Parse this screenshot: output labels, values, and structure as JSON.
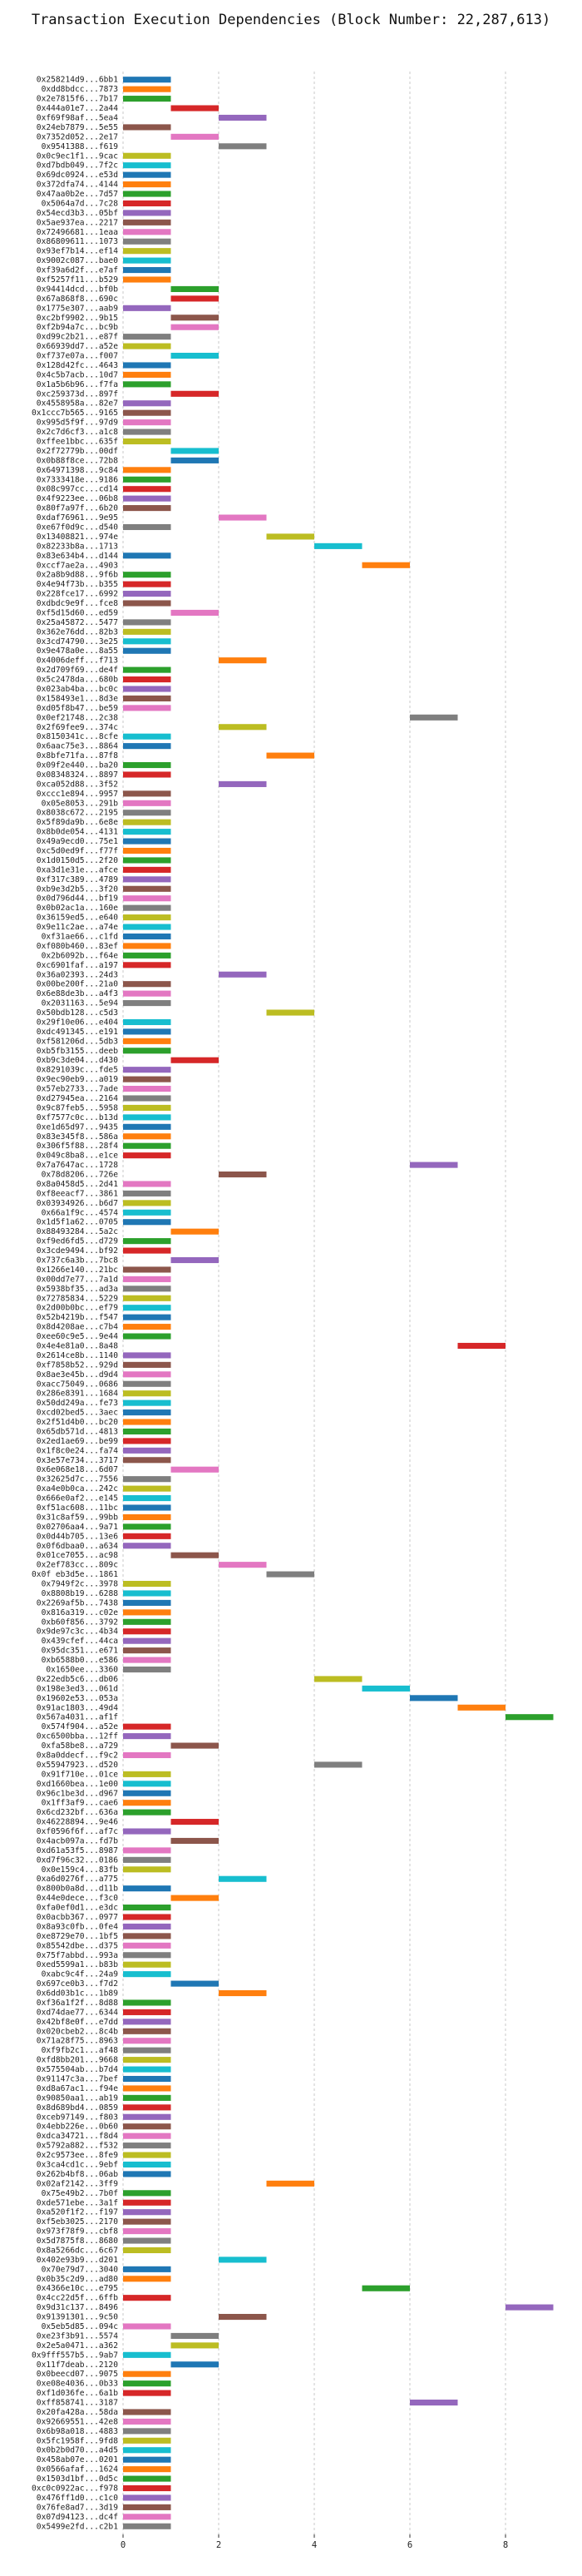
{
  "chart_data": {
    "type": "bar",
    "orientation": "horizontal",
    "title": "Transaction Execution Dependencies (Block Number: 22,287,613)",
    "xlabel": "",
    "ylabel": "",
    "xlim": [
      0,
      9.2
    ],
    "xticks": [
      0,
      2,
      4,
      6,
      8
    ],
    "grid": "vertical dashed",
    "bar_length": 1,
    "palette": [
      "#1f77b4",
      "#ff7f0e",
      "#2ca02c",
      "#d62728",
      "#9467bd",
      "#8c564b",
      "#e377c2",
      "#7f7f7f",
      "#bcbd22",
      "#17becf"
    ],
    "transactions": [
      {
        "hash": "0x258214d9...6bb1",
        "start": 0
      },
      {
        "hash": "0xdd8bdcc...7873",
        "start": 0
      },
      {
        "hash": "0x2e7815f6...7b17",
        "start": 0
      },
      {
        "hash": "0x444a01e7...2a44",
        "start": 1
      },
      {
        "hash": "0xf69f98af...5ea4",
        "start": 2
      },
      {
        "hash": "0x24eb7879...5e55",
        "start": 0
      },
      {
        "hash": "0x7352d052...2e17",
        "start": 1
      },
      {
        "hash": "0x9541388...f619",
        "start": 2
      },
      {
        "hash": "0x0c9ec1f1...9cac",
        "start": 0
      },
      {
        "hash": "0xd7bdb049...7f2c",
        "start": 0
      },
      {
        "hash": "0x69dc0924...e53d",
        "start": 0
      },
      {
        "hash": "0x372dfa74...4144",
        "start": 0
      },
      {
        "hash": "0x47aa0b2e...7d57",
        "start": 0
      },
      {
        "hash": "0x5064a7d...7c28",
        "start": 0
      },
      {
        "hash": "0x54ecd3b3...05bf",
        "start": 0
      },
      {
        "hash": "0x5ae937ea...2217",
        "start": 0
      },
      {
        "hash": "0x72496681...1eaa",
        "start": 0
      },
      {
        "hash": "0x86809611...1073",
        "start": 0
      },
      {
        "hash": "0x93ef7b14...ef14",
        "start": 0
      },
      {
        "hash": "0x9002c087...bae0",
        "start": 0
      },
      {
        "hash": "0xf39a6d2f...e7af",
        "start": 0
      },
      {
        "hash": "0xf5257f11...b529",
        "start": 0
      },
      {
        "hash": "0x94414dcd...bf0b",
        "start": 1
      },
      {
        "hash": "0x67a868f8...690c",
        "start": 1
      },
      {
        "hash": "0x1775e307...aab9",
        "start": 0
      },
      {
        "hash": "0xc2bf9902...9b15",
        "start": 1
      },
      {
        "hash": "0xf2b94a7c...bc9b",
        "start": 1
      },
      {
        "hash": "0xd99c2b21...e87f",
        "start": 0
      },
      {
        "hash": "0x66939dd7...a52e",
        "start": 0
      },
      {
        "hash": "0xf737e07a...f007",
        "start": 1
      },
      {
        "hash": "0x128d42fc...4643",
        "start": 0
      },
      {
        "hash": "0x4c5b7acb...10d7",
        "start": 0
      },
      {
        "hash": "0x1a5b6b96...f7fa",
        "start": 0
      },
      {
        "hash": "0xc259373d...897f",
        "start": 1
      },
      {
        "hash": "0x4558958a...82e7",
        "start": 0
      },
      {
        "hash": "0x1ccc7b565...9165",
        "start": 0
      },
      {
        "hash": "0x995d5f9f...97d9",
        "start": 0
      },
      {
        "hash": "0x2c7d6cf3...a1c8",
        "start": 0
      },
      {
        "hash": "0xffee1bbc...635f",
        "start": 0
      },
      {
        "hash": "0x2f72779b...00df",
        "start": 1
      },
      {
        "hash": "0x0b88f8ce...72b8",
        "start": 1
      },
      {
        "hash": "0x64971398...9c84",
        "start": 0
      },
      {
        "hash": "0x7333418e...9186",
        "start": 0
      },
      {
        "hash": "0x08c997cc...cd14",
        "start": 0
      },
      {
        "hash": "0x4f9223ee...06b8",
        "start": 0
      },
      {
        "hash": "0x80f7a97f...6b20",
        "start": 0
      },
      {
        "hash": "0xdaf76961...9e95",
        "start": 2
      },
      {
        "hash": "0xe67f0d9c...d540",
        "start": 0
      },
      {
        "hash": "0x13408821...974e",
        "start": 3
      },
      {
        "hash": "0x82233b8a...1713",
        "start": 4
      },
      {
        "hash": "0x83e634b4...d144",
        "start": 0
      },
      {
        "hash": "0xccf7ae2a...4903",
        "start": 5
      },
      {
        "hash": "0x2a8b9d88...9f6b",
        "start": 0
      },
      {
        "hash": "0x4e94f73b...b355",
        "start": 0
      },
      {
        "hash": "0x228fce17...6992",
        "start": 0
      },
      {
        "hash": "0xdbdc9e9f...fce8",
        "start": 0
      },
      {
        "hash": "0xf5d15d60...ed59",
        "start": 1
      },
      {
        "hash": "0x25a45872...5477",
        "start": 0
      },
      {
        "hash": "0x362e76dd...82b3",
        "start": 0
      },
      {
        "hash": "0x3cd74790...3e25",
        "start": 0
      },
      {
        "hash": "0x9e478a0e...8a55",
        "start": 0
      },
      {
        "hash": "0x4006deff...f713",
        "start": 2
      },
      {
        "hash": "0x2d709f69...de4f",
        "start": 0
      },
      {
        "hash": "0x5c2478da...680b",
        "start": 0
      },
      {
        "hash": "0x023ab4ba...bc0c",
        "start": 0
      },
      {
        "hash": "0x158493e1...8d3e",
        "start": 0
      },
      {
        "hash": "0xd05f8b47...be59",
        "start": 0
      },
      {
        "hash": "0x0ef21748...2c38",
        "start": 6
      },
      {
        "hash": "0x2f69fee9...374c",
        "start": 2
      },
      {
        "hash": "0x8150341c...8cfe",
        "start": 0
      },
      {
        "hash": "0x6aac75e3...8864",
        "start": 0
      },
      {
        "hash": "0x8bfe71fa...87f8",
        "start": 3
      },
      {
        "hash": "0x09f2e440...ba20",
        "start": 0
      },
      {
        "hash": "0x08348324...8897",
        "start": 0
      },
      {
        "hash": "0xca052d88...3f52",
        "start": 2
      },
      {
        "hash": "0xccc1e894...9957",
        "start": 0
      },
      {
        "hash": "0x05e8053...291b",
        "start": 0
      },
      {
        "hash": "0x8038c672...2195",
        "start": 0
      },
      {
        "hash": "0x5f89da9b...6e8e",
        "start": 0
      },
      {
        "hash": "0x8b0de054...4131",
        "start": 0
      },
      {
        "hash": "0x49a9ecd0...75e1",
        "start": 0
      },
      {
        "hash": "0xc5d0ed9f...f77f",
        "start": 0
      },
      {
        "hash": "0x1d0150d5...2f20",
        "start": 0
      },
      {
        "hash": "0xa3d1e31e...afce",
        "start": 0
      },
      {
        "hash": "0xf317c389...4789",
        "start": 0
      },
      {
        "hash": "0xb9e3d2b5...3f20",
        "start": 0
      },
      {
        "hash": "0x0d796d44...bf19",
        "start": 0
      },
      {
        "hash": "0x0b02ac1a...160e",
        "start": 0
      },
      {
        "hash": "0x36159ed5...e640",
        "start": 0
      },
      {
        "hash": "0x9e11c2ae...a74e",
        "start": 0
      },
      {
        "hash": "0xf31ae66...c1fd",
        "start": 0
      },
      {
        "hash": "0xf080b460...83ef",
        "start": 0
      },
      {
        "hash": "0x2b6092b...f64e",
        "start": 0
      },
      {
        "hash": "0xc6901faf...a197",
        "start": 0
      },
      {
        "hash": "0x36a02393...24d3",
        "start": 2
      },
      {
        "hash": "0x00be200f...21a0",
        "start": 0
      },
      {
        "hash": "0x6e88de3b...a4f3",
        "start": 0
      },
      {
        "hash": "0x2031163...5e94",
        "start": 0
      },
      {
        "hash": "0x50bdb128...c5d3",
        "start": 3
      },
      {
        "hash": "0x29f10e06...e404",
        "start": 0
      },
      {
        "hash": "0xdc491345...e191",
        "start": 0
      },
      {
        "hash": "0xf581206d...5db3",
        "start": 0
      },
      {
        "hash": "0xb5fb3155...deeb",
        "start": 0
      },
      {
        "hash": "0xb9c3de04...d430",
        "start": 1
      },
      {
        "hash": "0x8291039c...fde5",
        "start": 0
      },
      {
        "hash": "0x9ec90eb9...a019",
        "start": 0
      },
      {
        "hash": "0x57eb2733...7ade",
        "start": 0
      },
      {
        "hash": "0xd27945ea...2164",
        "start": 0
      },
      {
        "hash": "0x9c87feb5...5958",
        "start": 0
      },
      {
        "hash": "0xf7577c0c...b13d",
        "start": 0
      },
      {
        "hash": "0xe1d65d97...9435",
        "start": 0
      },
      {
        "hash": "0x83e345f8...586a",
        "start": 0
      },
      {
        "hash": "0x306f5f88...28f4",
        "start": 0
      },
      {
        "hash": "0x049c8ba8...e1ce",
        "start": 0
      },
      {
        "hash": "0x7a7647ac...1728",
        "start": 6
      },
      {
        "hash": "0x78d8206...726e",
        "start": 2
      },
      {
        "hash": "0x8a0458d5...2d41",
        "start": 0
      },
      {
        "hash": "0xf8eeacf7...3861",
        "start": 0
      },
      {
        "hash": "0x03934926...b6d7",
        "start": 0
      },
      {
        "hash": "0x66a1f9c...4574",
        "start": 0
      },
      {
        "hash": "0x1d5f1a62...0705",
        "start": 0
      },
      {
        "hash": "0x88493284...5a2c",
        "start": 1
      },
      {
        "hash": "0xf9ed6fd5...d729",
        "start": 0
      },
      {
        "hash": "0x3cde9494...bf92",
        "start": 0
      },
      {
        "hash": "0x737c6a3b...7bc8",
        "start": 1
      },
      {
        "hash": "0x1266e140...21bc",
        "start": 0
      },
      {
        "hash": "0x00dd7e77...7a1d",
        "start": 0
      },
      {
        "hash": "0x5938bf35...ad3a",
        "start": 0
      },
      {
        "hash": "0x72785834...5229",
        "start": 0
      },
      {
        "hash": "0x2d00b0bc...ef79",
        "start": 0
      },
      {
        "hash": "0x52b4219b...f547",
        "start": 0
      },
      {
        "hash": "0x8d4208ae...c7b4",
        "start": 0
      },
      {
        "hash": "0xee60c9e5...9e44",
        "start": 0
      },
      {
        "hash": "0x4e4e81a0...8a48",
        "start": 7
      },
      {
        "hash": "0x2614ce8b...1140",
        "start": 0
      },
      {
        "hash": "0xf7858b52...929d",
        "start": 0
      },
      {
        "hash": "0x8ae3e45b...d9d4",
        "start": 0
      },
      {
        "hash": "0xacc75049...0686",
        "start": 0
      },
      {
        "hash": "0x286e8391...1684",
        "start": 0
      },
      {
        "hash": "0x50dd249a...fe73",
        "start": 0
      },
      {
        "hash": "0xcd02bed5...3aec",
        "start": 0
      },
      {
        "hash": "0x2f51d4b0...bc20",
        "start": 0
      },
      {
        "hash": "0x65db571d...4813",
        "start": 0
      },
      {
        "hash": "0x2ed1ae69...be99",
        "start": 0
      },
      {
        "hash": "0x1f8c0e24...fa74",
        "start": 0
      },
      {
        "hash": "0x3e57e734...3717",
        "start": 0
      },
      {
        "hash": "0x6e068e18...6d07",
        "start": 1
      },
      {
        "hash": "0x32625d7c...7556",
        "start": 0
      },
      {
        "hash": "0xa4e0b0ca...242c",
        "start": 0
      },
      {
        "hash": "0x666e0af2...e145",
        "start": 0
      },
      {
        "hash": "0xf51ac608...11bc",
        "start": 0
      },
      {
        "hash": "0x31c8af59...99bb",
        "start": 0
      },
      {
        "hash": "0x02706aa4...9a71",
        "start": 0
      },
      {
        "hash": "0x0d44b705...13e6",
        "start": 0
      },
      {
        "hash": "0x0f6dbaa0...a634",
        "start": 0
      },
      {
        "hash": "0x01ce7055...ac98",
        "start": 1
      },
      {
        "hash": "0x2ef783cc...809c",
        "start": 2
      },
      {
        "hash": "0x0f eb3d5e...1861",
        "start": 3
      },
      {
        "hash": "0x7949f2c...3978",
        "start": 0
      },
      {
        "hash": "0x8808b19...6288",
        "start": 0
      },
      {
        "hash": "0x2269af5b...7438",
        "start": 0
      },
      {
        "hash": "0x816a319...c02e",
        "start": 0
      },
      {
        "hash": "0xb60f856...3792",
        "start": 0
      },
      {
        "hash": "0x9de97c3c...4b34",
        "start": 0
      },
      {
        "hash": "0x439cfef...44ca",
        "start": 0
      },
      {
        "hash": "0x95dc351...e671",
        "start": 0
      },
      {
        "hash": "0xb6588b0...e586",
        "start": 0
      },
      {
        "hash": "0x1650ee...3360",
        "start": 0
      },
      {
        "hash": "0x22edb5c6...db06",
        "start": 4
      },
      {
        "hash": "0x198e3ed3...061d",
        "start": 5
      },
      {
        "hash": "0x19602e53...053a",
        "start": 6
      },
      {
        "hash": "0x91ac1803...49d4",
        "start": 7
      },
      {
        "hash": "0x567a4031...af1f",
        "start": 8
      },
      {
        "hash": "0x574f904...a52e",
        "start": 0
      },
      {
        "hash": "0xc6500bba...12ff",
        "start": 0
      },
      {
        "hash": "0xfa58be8...a729",
        "start": 1
      },
      {
        "hash": "0x8a0ddecf...f9c2",
        "start": 0
      },
      {
        "hash": "0x55947923...d520",
        "start": 4
      },
      {
        "hash": "0x91f710e...01ce",
        "start": 0
      },
      {
        "hash": "0xd1660bea...1e00",
        "start": 0
      },
      {
        "hash": "0x96c1be3d...d967",
        "start": 0
      },
      {
        "hash": "0x1ff3af9...cae6",
        "start": 0
      },
      {
        "hash": "0x6cd232bf...636a",
        "start": 0
      },
      {
        "hash": "0x46228894...9e46",
        "start": 1
      },
      {
        "hash": "0xf0596f6f...af7c",
        "start": 0
      },
      {
        "hash": "0x4acb097a...fd7b",
        "start": 1
      },
      {
        "hash": "0xd61a53f5...8987",
        "start": 0
      },
      {
        "hash": "0xd7f96c32...0186",
        "start": 0
      },
      {
        "hash": "0x0e159c4...83fb",
        "start": 0
      },
      {
        "hash": "0xa6d0276f...a775",
        "start": 2
      },
      {
        "hash": "0x800b0a8d...d11b",
        "start": 0
      },
      {
        "hash": "0x44e0dece...f3c0",
        "start": 1
      },
      {
        "hash": "0xfa0ef0d1...e3dc",
        "start": 0
      },
      {
        "hash": "0x0acbb367...0977",
        "start": 0
      },
      {
        "hash": "0x8a93c0fb...0fe4",
        "start": 0
      },
      {
        "hash": "0xe8729e70...1bf5",
        "start": 0
      },
      {
        "hash": "0x85542dbe...d375",
        "start": 0
      },
      {
        "hash": "0x75f7abbd...993a",
        "start": 0
      },
      {
        "hash": "0xed5599a1...b83b",
        "start": 0
      },
      {
        "hash": "0xabc9c4f...24a9",
        "start": 0
      },
      {
        "hash": "0x697ce0b3...f7d2",
        "start": 1
      },
      {
        "hash": "0x6dd03b1c...1b89",
        "start": 2
      },
      {
        "hash": "0xf36a1f2f...8d88",
        "start": 0
      },
      {
        "hash": "0xd74dae77...6344",
        "start": 0
      },
      {
        "hash": "0x42bf8e0f...e7dd",
        "start": 0
      },
      {
        "hash": "0x020cbeb2...8c4b",
        "start": 0
      },
      {
        "hash": "0x71a28f75...8963",
        "start": 0
      },
      {
        "hash": "0xf9fb2c1...af48",
        "start": 0
      },
      {
        "hash": "0xfd8bb201...9668",
        "start": 0
      },
      {
        "hash": "0x575504ab...b7d4",
        "start": 0
      },
      {
        "hash": "0x91147c3a...7bef",
        "start": 0
      },
      {
        "hash": "0xd8a67ac1...f94e",
        "start": 0
      },
      {
        "hash": "0x90850aa1...ab19",
        "start": 0
      },
      {
        "hash": "0x8d689bd4...0859",
        "start": 0
      },
      {
        "hash": "0xceb97149...f803",
        "start": 0
      },
      {
        "hash": "0x4ebb226e...0b60",
        "start": 0
      },
      {
        "hash": "0xdca34721...f8d4",
        "start": 0
      },
      {
        "hash": "0x5792a882...f532",
        "start": 0
      },
      {
        "hash": "0x2c9573ee...8fe9",
        "start": 0
      },
      {
        "hash": "0x3ca4cd1c...9ebf",
        "start": 0
      },
      {
        "hash": "0x262b4bf8...06ab",
        "start": 0
      },
      {
        "hash": "0x02af2142...3ff9",
        "start": 3
      },
      {
        "hash": "0x75e49b2...7b0f",
        "start": 0
      },
      {
        "hash": "0xde571ebe...3a1f",
        "start": 0
      },
      {
        "hash": "0xa520f1f2...f197",
        "start": 0
      },
      {
        "hash": "0xf5eb3025...2170",
        "start": 0
      },
      {
        "hash": "0x973f78f9...cbf8",
        "start": 0
      },
      {
        "hash": "0x5d7875f8...8680",
        "start": 0
      },
      {
        "hash": "0x8a5266dc...6c67",
        "start": 0
      },
      {
        "hash": "0x402e93b9...d201",
        "start": 2
      },
      {
        "hash": "0x70e79d7...3040",
        "start": 0
      },
      {
        "hash": "0x0b35c2d9...ad80",
        "start": 0
      },
      {
        "hash": "0x4366e10c...e795",
        "start": 5
      },
      {
        "hash": "0x4cc22d5f...6ffb",
        "start": 0
      },
      {
        "hash": "0x9d31c137...8496",
        "start": 8
      },
      {
        "hash": "0x91391301...9c50",
        "start": 2
      },
      {
        "hash": "0x5eb5d85...094c",
        "start": 0
      },
      {
        "hash": "0xe23f3b91...5574",
        "start": 1
      },
      {
        "hash": "0x2e5a0471...a362",
        "start": 1
      },
      {
        "hash": "0x9fff557b5...9ab7",
        "start": 0
      },
      {
        "hash": "0x11f7deab...2120",
        "start": 1
      },
      {
        "hash": "0x0beecd07...9075",
        "start": 0
      },
      {
        "hash": "0xe08e4036...0b33",
        "start": 0
      },
      {
        "hash": "0xf1d036fe...6a1b",
        "start": 0
      },
      {
        "hash": "0xff858741...3187",
        "start": 6
      },
      {
        "hash": "0x20fa428a...58da",
        "start": 0
      },
      {
        "hash": "0x92669551...42e8",
        "start": 0
      },
      {
        "hash": "0x6b98a018...4883",
        "start": 0
      },
      {
        "hash": "0x5fc1958f...9fd8",
        "start": 0
      },
      {
        "hash": "0x0b2b0d70...a4d5",
        "start": 0
      },
      {
        "hash": "0x458ab07e...0201",
        "start": 0
      },
      {
        "hash": "0x0566afaf...1624",
        "start": 0
      },
      {
        "hash": "0x1503d1bf...0d5c",
        "start": 0
      },
      {
        "hash": "0xc0c0922ac...f978",
        "start": 0
      },
      {
        "hash": "0x476ff1d0...c1c0",
        "start": 0
      },
      {
        "hash": "0x76fe8ad7...3d19",
        "start": 0
      },
      {
        "hash": "0x07d94123...dc4f",
        "start": 0
      },
      {
        "hash": "0x5499e2fd...c2b1",
        "start": 0
      }
    ]
  }
}
